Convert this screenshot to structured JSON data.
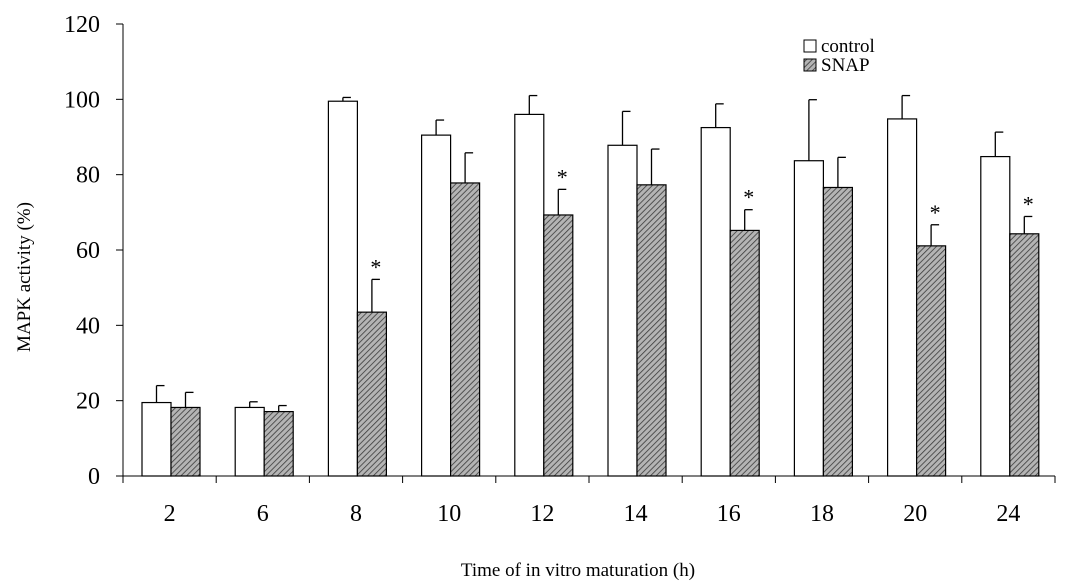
{
  "chart_data": {
    "type": "bar",
    "title": "",
    "xlabel": "Time of in vitro maturation (h)",
    "ylabel": "MAPK activity (%)",
    "ylim": [
      0,
      120
    ],
    "yticks": [
      "0",
      "20",
      "40",
      "60",
      "80",
      "100",
      "120"
    ],
    "categories": [
      "2",
      "6",
      "8",
      "10",
      "12",
      "14",
      "16",
      "18",
      "20",
      "24"
    ],
    "series": [
      {
        "name": "control",
        "values": [
          19.5,
          18.2,
          99.5,
          90.5,
          96,
          87.8,
          92.5,
          83.7,
          94.8,
          84.8
        ],
        "errors": [
          4.5,
          1.5,
          1.0,
          4.0,
          5.0,
          9.0,
          6.3,
          16.2,
          6.2,
          6.5
        ]
      },
      {
        "name": "SNAP",
        "values": [
          18.2,
          17.1,
          43.5,
          77.8,
          69.3,
          77.3,
          65.2,
          76.6,
          61.1,
          64.3
        ],
        "errors": [
          4.0,
          1.6,
          8.7,
          8.0,
          6.8,
          9.5,
          5.5,
          8.0,
          5.6,
          4.6
        ]
      }
    ],
    "significance_marker": "*",
    "significant_categories": [
      "8",
      "12",
      "16",
      "20",
      "24"
    ],
    "legend_position": "top-right",
    "grid": false
  }
}
